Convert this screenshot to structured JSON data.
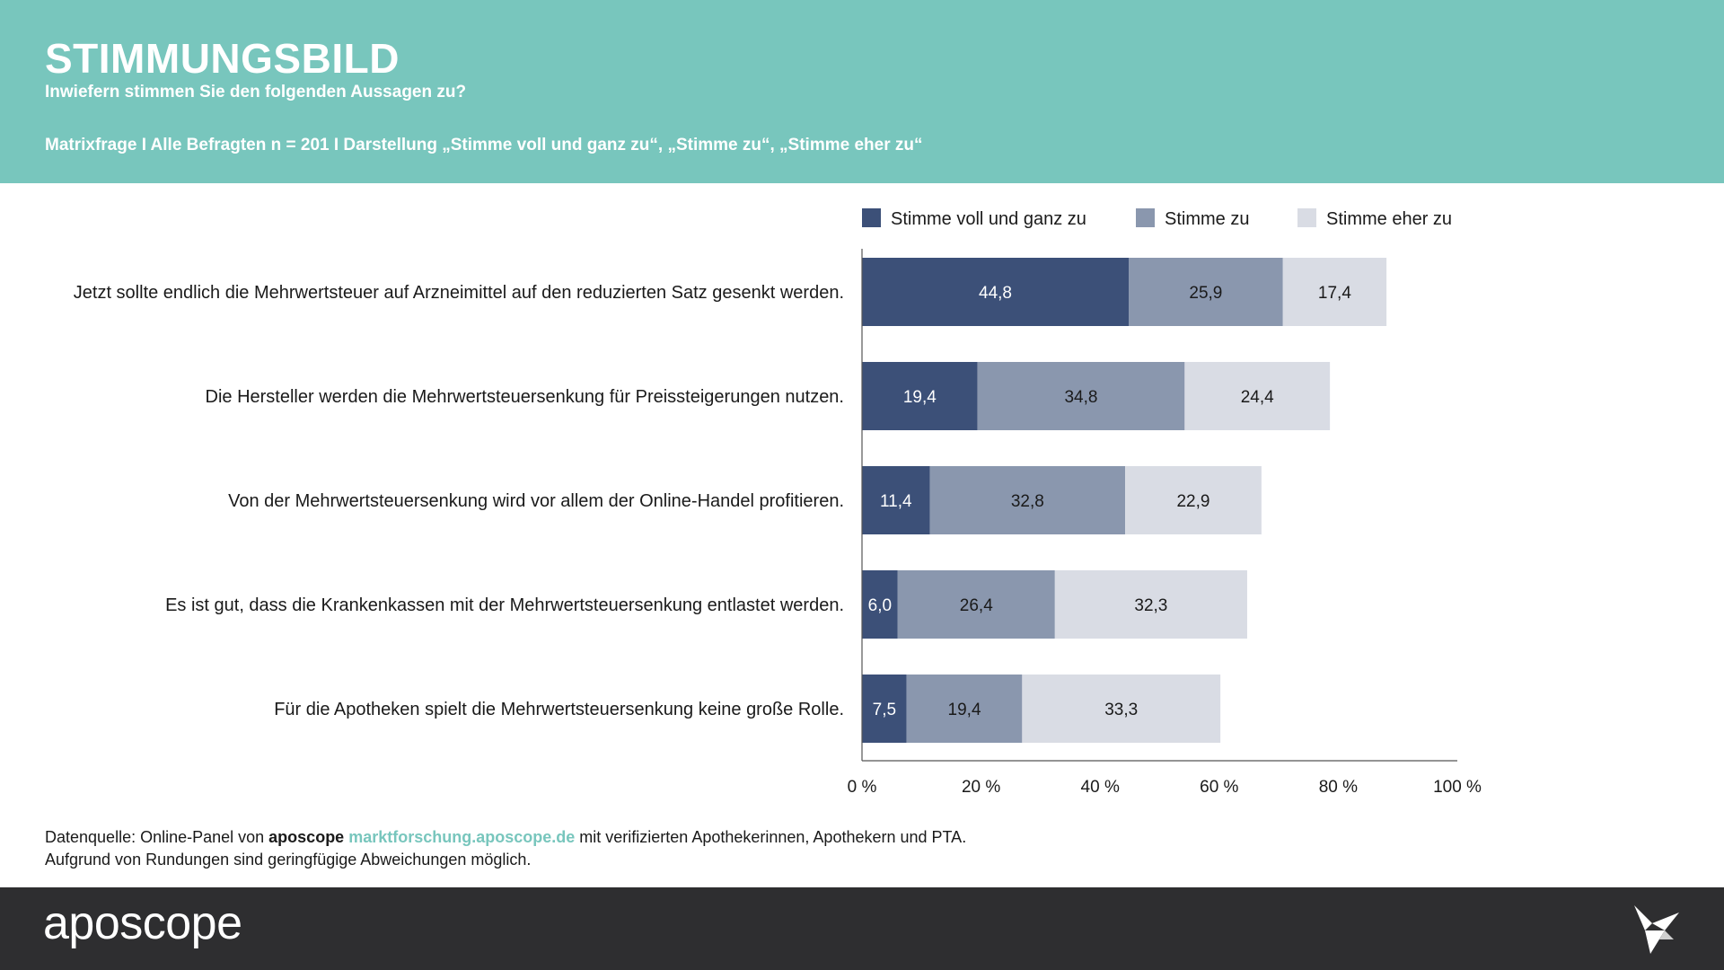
{
  "header": {
    "title": "STIMMUNGSBILD",
    "subtitle": "Inwiefern stimmen Sie den folgenden Aussagen zu?",
    "meta": "Matrixfrage I Alle Befragten n = 201 I Darstellung „Stimme voll und ganz zu“, „Stimme zu“, „Stimme eher zu“"
  },
  "chart_data": {
    "type": "bar",
    "orientation": "horizontal",
    "stacked": true,
    "categories": [
      "Jetzt sollte endlich die Mehrwertsteuer auf Arzneimittel auf den reduzierten Satz gesenkt werden.",
      "Die Hersteller werden die Mehrwertsteuersenkung für Preissteigerungen nutzen.",
      "Von der Mehrwertsteuersenkung wird vor allem der Online-Handel profitieren.",
      "Es ist gut, dass die Krankenkassen mit der Mehrwertsteuersenkung entlastet werden.",
      "Für die Apotheken spielt die Mehrwertsteuersenkung keine große Rolle."
    ],
    "series": [
      {
        "name": "Stimme voll und ganz zu",
        "color": "#3c5078",
        "label_color": "#ffffff",
        "values": [
          44.8,
          19.4,
          11.4,
          6.0,
          7.5
        ],
        "labels": [
          "44,8",
          "19,4",
          "11,4",
          "6,0",
          "7,5"
        ]
      },
      {
        "name": "Stimme zu",
        "color": "#8a97ae",
        "label_color": "#1a1a1a",
        "values": [
          25.9,
          34.8,
          32.8,
          26.4,
          19.4
        ],
        "labels": [
          "25,9",
          "34,8",
          "32,8",
          "26,4",
          "19,4"
        ]
      },
      {
        "name": "Stimme eher zu",
        "color": "#d9dce4",
        "label_color": "#1a1a1a",
        "values": [
          17.4,
          24.4,
          22.9,
          32.3,
          33.3
        ],
        "labels": [
          "17,4",
          "24,4",
          "22,9",
          "32,3",
          "33,3"
        ]
      }
    ],
    "xlim": [
      0,
      100
    ],
    "xticks": [
      0,
      20,
      40,
      60,
      80,
      100
    ],
    "xtick_labels": [
      "0 %",
      "20 %",
      "40 %",
      "60 %",
      "80 %",
      "100 %"
    ],
    "legend_position": "top",
    "grid": false
  },
  "source": {
    "prefix": "Datenquelle: Online-Panel von ",
    "brand": "aposcope",
    "link": "marktforschung.aposcope.de",
    "suffix": " mit verifizierten Apothekerinnen, Apothekern und PTA.",
    "line2": "Aufgrund von Rundungen sind geringfügige Abweichungen möglich."
  },
  "footer": {
    "logo": "aposcope",
    "logo_icon": "bird-icon",
    "background": "#2e2e30"
  },
  "colors": {
    "header_bg": "#78c6bd",
    "accent": "#78c6bd"
  }
}
